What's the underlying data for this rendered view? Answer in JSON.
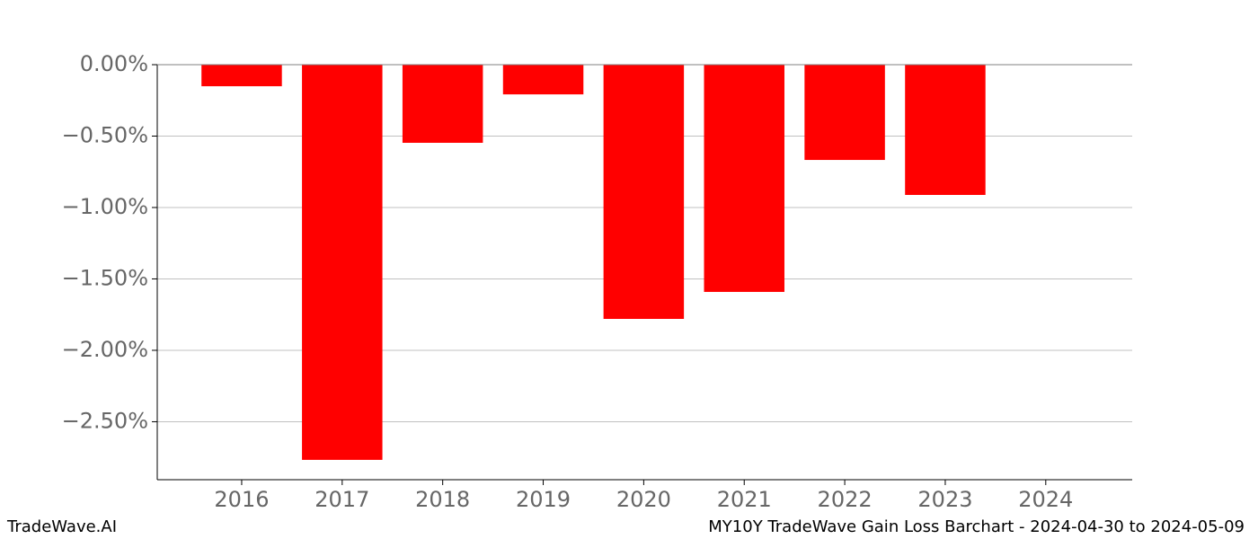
{
  "chart_data": {
    "type": "bar",
    "title": "MY10Y TradeWave Gain Loss Barchart - 2024-04-30 to 2024-05-09",
    "watermark": "TradeWave.AI",
    "x": [
      2016,
      2017,
      2018,
      2019,
      2020,
      2021,
      2022,
      2023,
      2024
    ],
    "values": [
      -0.151,
      -2.767,
      -0.547,
      -0.208,
      -1.78,
      -1.591,
      -0.667,
      -0.912,
      null
    ],
    "color": "#ff0000",
    "xlim": [
      2015.16,
      2024.86
    ],
    "xticks": [
      2016,
      2017,
      2018,
      2019,
      2020,
      2021,
      2022,
      2023,
      2024
    ],
    "ylim": [
      -2.906,
      0
    ],
    "yticks": [
      {
        "value": 0,
        "label": "0.00%"
      },
      {
        "value": -0.5,
        "label": "−0.50%"
      },
      {
        "value": -1,
        "label": "−1.00%"
      },
      {
        "value": -1.5,
        "label": "−1.50%"
      },
      {
        "value": -2,
        "label": "−2.00%"
      },
      {
        "value": -2.5,
        "label": "−2.50%"
      }
    ],
    "grid": true
  }
}
